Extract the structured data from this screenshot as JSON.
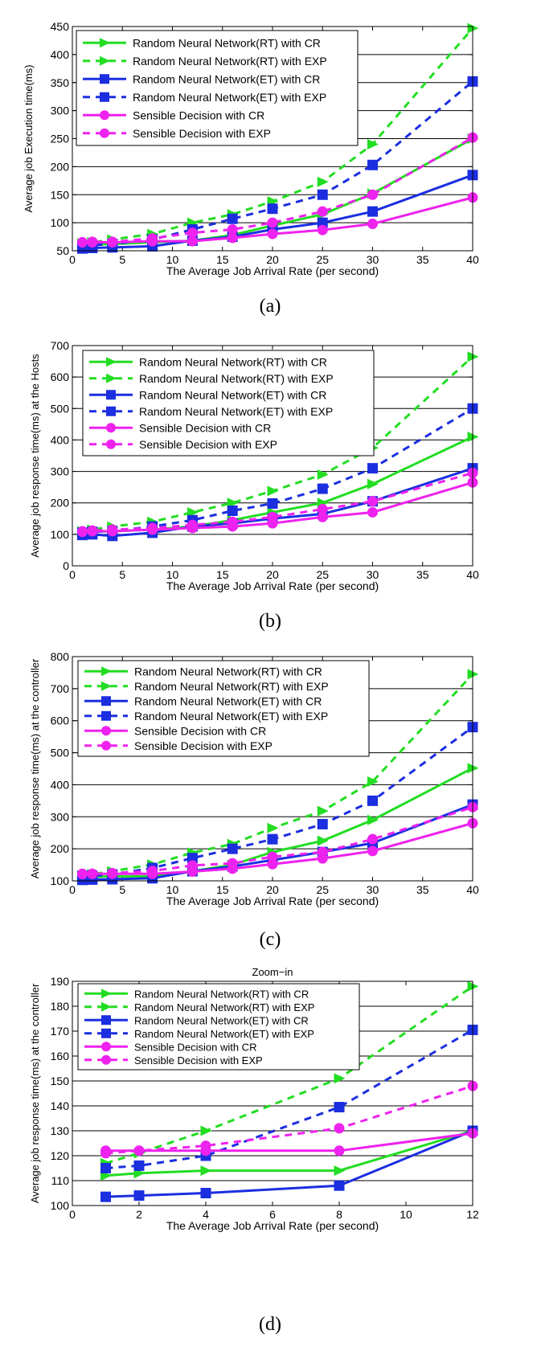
{
  "chart_data": [
    {
      "type": "line",
      "panel_label": "(a)",
      "title": "",
      "xlabel": "The Average Job Arrival Rate (per second)",
      "ylabel": "Average job Execution time(ms)",
      "xlim": [
        0,
        40
      ],
      "ylim": [
        50,
        450
      ],
      "xticks": [
        0,
        5,
        10,
        15,
        20,
        25,
        30,
        35,
        40
      ],
      "yticks": [
        50,
        100,
        150,
        200,
        250,
        300,
        350,
        400,
        450
      ],
      "legend": "top-left",
      "x": [
        1,
        2,
        4,
        8,
        12,
        16,
        20,
        25,
        30,
        40
      ],
      "series": [
        {
          "name": "Random Neural Network(RT) with CR",
          "color": "#22dd22",
          "style": "solid",
          "marker": "triangle",
          "values": [
            60,
            61,
            62,
            65,
            68,
            78,
            95,
            115,
            152,
            250
          ]
        },
        {
          "name": "Random Neural Network(RT) with EXP",
          "color": "#22dd22",
          "style": "dashed",
          "marker": "triangle",
          "values": [
            63,
            65,
            70,
            80,
            100,
            115,
            138,
            173,
            240,
            447
          ]
        },
        {
          "name": "Random Neural Network(ET) with CR",
          "color": "#1b2ee0",
          "style": "solid",
          "marker": "square",
          "values": [
            54,
            55,
            56,
            58,
            68,
            75,
            88,
            100,
            120,
            185
          ]
        },
        {
          "name": "Random Neural Network(ET) with EXP",
          "color": "#1b2ee0",
          "style": "dashed",
          "marker": "square",
          "values": [
            58,
            60,
            62,
            70,
            88,
            107,
            125,
            150,
            203,
            352
          ]
        },
        {
          "name": "Sensible Decision with CR",
          "color": "#ee22ee",
          "style": "solid",
          "marker": "circle",
          "values": [
            65,
            65,
            65,
            67,
            67,
            73,
            80,
            87,
            98,
            145
          ]
        },
        {
          "name": "Sensible Decision with EXP",
          "color": "#ee22ee",
          "style": "dashed",
          "marker": "circle",
          "values": [
            65,
            66,
            66,
            72,
            82,
            88,
            100,
            120,
            150,
            252
          ]
        }
      ]
    },
    {
      "type": "line",
      "panel_label": "(b)",
      "title": "",
      "xlabel": "The Average Job Arrival Rate (per second)",
      "ylabel": "Average job response time(ms) at the Hosts",
      "xlim": [
        0,
        40
      ],
      "ylim": [
        0,
        700
      ],
      "xticks": [
        0,
        5,
        10,
        15,
        20,
        25,
        30,
        35,
        40
      ],
      "yticks": [
        0,
        100,
        200,
        300,
        400,
        500,
        600,
        700
      ],
      "legend": "top-left",
      "x": [
        1,
        2,
        4,
        8,
        12,
        16,
        20,
        25,
        30,
        40
      ],
      "series": [
        {
          "name": "Random Neural Network(RT) with CR",
          "color": "#22dd22",
          "style": "solid",
          "marker": "triangle",
          "values": [
            105,
            108,
            110,
            115,
            125,
            145,
            170,
            200,
            260,
            410
          ]
        },
        {
          "name": "Random Neural Network(RT) with EXP",
          "color": "#22dd22",
          "style": "dashed",
          "marker": "triangle",
          "values": [
            110,
            115,
            125,
            140,
            170,
            200,
            238,
            290,
            375,
            665
          ]
        },
        {
          "name": "Random Neural Network(ET) with CR",
          "color": "#1b2ee0",
          "style": "solid",
          "marker": "square",
          "values": [
            98,
            100,
            95,
            105,
            125,
            135,
            150,
            165,
            205,
            310
          ]
        },
        {
          "name": "Random Neural Network(ET) with EXP",
          "color": "#1b2ee0",
          "style": "dashed",
          "marker": "square",
          "values": [
            105,
            108,
            110,
            125,
            145,
            175,
            198,
            245,
            310,
            500
          ]
        },
        {
          "name": "Sensible Decision with CR",
          "color": "#ee22ee",
          "style": "solid",
          "marker": "circle",
          "values": [
            108,
            110,
            110,
            115,
            120,
            125,
            135,
            155,
            170,
            265
          ]
        },
        {
          "name": "Sensible Decision with EXP",
          "color": "#ee22ee",
          "style": "dashed",
          "marker": "circle",
          "values": [
            110,
            112,
            115,
            120,
            130,
            140,
            155,
            180,
            205,
            295
          ]
        }
      ]
    },
    {
      "type": "line",
      "panel_label": "(c)",
      "title": "",
      "xlabel": "The Average Job Arrival Rate (per second)",
      "ylabel": "Average job response time(ms) at the controller",
      "xlim": [
        0,
        40
      ],
      "ylim": [
        100,
        800
      ],
      "xticks": [
        0,
        5,
        10,
        15,
        20,
        25,
        30,
        35,
        40
      ],
      "yticks": [
        100,
        200,
        300,
        400,
        500,
        600,
        700,
        800
      ],
      "legend": "top-left",
      "x": [
        1,
        2,
        4,
        8,
        12,
        16,
        20,
        25,
        30,
        40
      ],
      "series": [
        {
          "name": "Random Neural Network(RT) with CR",
          "color": "#22dd22",
          "style": "solid",
          "marker": "triangle",
          "values": [
            112,
            113,
            114,
            114,
            130,
            150,
            190,
            225,
            290,
            452
          ]
        },
        {
          "name": "Random Neural Network(RT) with EXP",
          "color": "#22dd22",
          "style": "dashed",
          "marker": "triangle",
          "values": [
            117,
            121,
            130,
            151,
            188,
            215,
            265,
            318,
            410,
            745
          ]
        },
        {
          "name": "Random Neural Network(ET) with CR",
          "color": "#1b2ee0",
          "style": "solid",
          "marker": "square",
          "values": [
            103,
            104,
            105,
            108,
            130,
            145,
            165,
            190,
            218,
            338
          ]
        },
        {
          "name": "Random Neural Network(ET) with EXP",
          "color": "#1b2ee0",
          "style": "dashed",
          "marker": "square",
          "values": [
            115,
            116,
            120,
            140,
            171,
            200,
            230,
            277,
            350,
            580
          ]
        },
        {
          "name": "Sensible Decision with CR",
          "color": "#ee22ee",
          "style": "solid",
          "marker": "circle",
          "values": [
            122,
            122,
            122,
            122,
            129,
            138,
            152,
            170,
            193,
            280
          ]
        },
        {
          "name": "Sensible Decision with EXP",
          "color": "#ee22ee",
          "style": "dashed",
          "marker": "circle",
          "values": [
            121,
            122,
            124,
            131,
            148,
            155,
            175,
            190,
            230,
            330
          ]
        }
      ]
    },
    {
      "type": "line",
      "panel_label": "(d)",
      "title": "Zoom−in",
      "xlabel": "The Average Job Arrival Rate (per second)",
      "ylabel": "Average job response time(ms) at the controller",
      "xlim": [
        0,
        12
      ],
      "ylim": [
        100,
        190
      ],
      "xticks": [
        0,
        2,
        4,
        6,
        8,
        10,
        12
      ],
      "yticks": [
        100,
        110,
        120,
        130,
        140,
        150,
        160,
        170,
        180,
        190
      ],
      "legend": "top-left",
      "x": [
        1,
        2,
        4,
        8,
        12
      ],
      "series": [
        {
          "name": "Random Neural Network(RT) with CR",
          "color": "#22dd22",
          "style": "solid",
          "marker": "triangle",
          "values": [
            112,
            113,
            114,
            114,
            130
          ]
        },
        {
          "name": "Random Neural Network(RT) with EXP",
          "color": "#22dd22",
          "style": "dashed",
          "marker": "triangle",
          "values": [
            117,
            121,
            130,
            151,
            188
          ]
        },
        {
          "name": "Random Neural Network(ET) with CR",
          "color": "#1b2ee0",
          "style": "solid",
          "marker": "square",
          "values": [
            103.5,
            104,
            105,
            108,
            130
          ]
        },
        {
          "name": "Random Neural Network(ET) with EXP",
          "color": "#1b2ee0",
          "style": "dashed",
          "marker": "square",
          "values": [
            115,
            116,
            120,
            139.5,
            170.5
          ]
        },
        {
          "name": "Sensible Decision with CR",
          "color": "#ee22ee",
          "style": "solid",
          "marker": "circle",
          "values": [
            122,
            122,
            122,
            122,
            129
          ]
        },
        {
          "name": "Sensible Decision with EXP",
          "color": "#ee22ee",
          "style": "dashed",
          "marker": "circle",
          "values": [
            121,
            122,
            124,
            131,
            148
          ]
        }
      ]
    }
  ]
}
